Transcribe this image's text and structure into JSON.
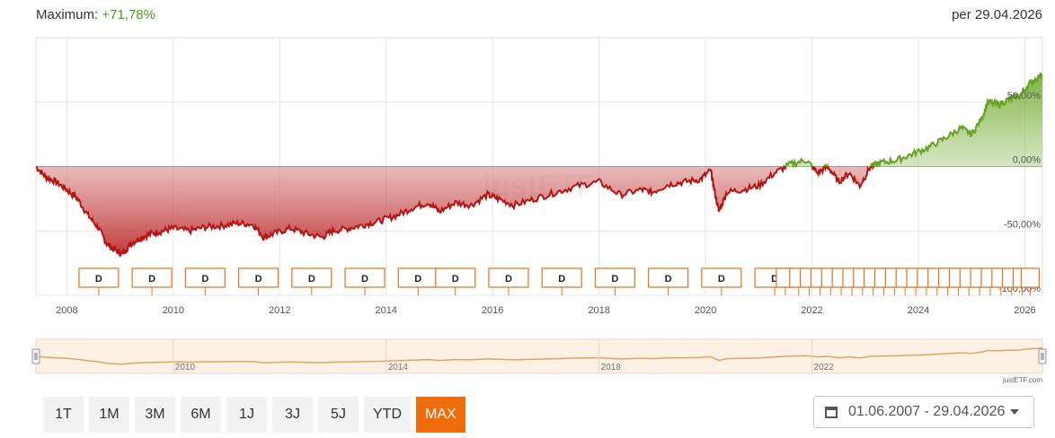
{
  "header": {
    "max_label": "Maximum:",
    "max_value": "+71,78%",
    "as_of": "per 29.04.2026"
  },
  "chart_data": {
    "type": "area",
    "x_ticks": [
      "2008",
      "2010",
      "2012",
      "2014",
      "2016",
      "2018",
      "2020",
      "2022",
      "2024",
      "2026"
    ],
    "y_ticks": [
      "50,00%",
      "0,00%",
      "-50,00%",
      "-100,00%"
    ],
    "y_tick_values": [
      50,
      0,
      -50,
      -100
    ],
    "ylim": [
      -100,
      100
    ],
    "xlim": [
      2007.42,
      2026.33
    ],
    "grid": true,
    "series": [
      {
        "x": [
          2007.42,
          2007.6,
          2007.8,
          2008.0,
          2008.2,
          2008.4,
          2008.6,
          2008.75,
          2008.9,
          2009.05,
          2009.2,
          2009.4,
          2009.6,
          2009.8,
          2010.0,
          2010.3,
          2010.6,
          2010.9,
          2011.2,
          2011.5,
          2011.7,
          2011.9,
          2012.2,
          2012.5,
          2012.8,
          2013.0,
          2013.3,
          2013.6,
          2013.9,
          2014.2,
          2014.5,
          2014.8,
          2015.0,
          2015.3,
          2015.6,
          2015.9,
          2016.1,
          2016.4,
          2016.8,
          2017.2,
          2017.6,
          2018.0,
          2018.4,
          2018.8,
          2019.0,
          2019.3,
          2019.6,
          2019.9,
          2020.1,
          2020.15,
          2020.25,
          2020.4,
          2020.7,
          2021.0,
          2021.3,
          2021.6,
          2021.9,
          2022.1,
          2022.3,
          2022.5,
          2022.7,
          2022.9,
          2023.1,
          2023.3,
          2023.6,
          2023.9,
          2024.2,
          2024.5,
          2024.8,
          2025.0,
          2025.2,
          2025.3,
          2025.5,
          2025.7,
          2025.9,
          2026.1,
          2026.33
        ],
        "y": [
          0,
          -8,
          -12,
          -18,
          -25,
          -38,
          -48,
          -60,
          -65,
          -68,
          -60,
          -55,
          -52,
          -50,
          -48,
          -50,
          -47,
          -46,
          -44,
          -45,
          -55,
          -52,
          -48,
          -52,
          -55,
          -50,
          -48,
          -45,
          -42,
          -38,
          -32,
          -28,
          -35,
          -28,
          -30,
          -22,
          -25,
          -30,
          -25,
          -20,
          -15,
          -12,
          -22,
          -18,
          -20,
          -14,
          -12,
          -10,
          -3,
          -15,
          -35,
          -20,
          -18,
          -15,
          -5,
          2,
          5,
          -5,
          0,
          -12,
          -5,
          -15,
          0,
          3,
          5,
          10,
          15,
          22,
          30,
          25,
          38,
          50,
          48,
          52,
          55,
          65,
          71.78
        ]
      }
    ],
    "dividend_markers_label": "D",
    "dividend_markers_x": [
      2008.6,
      2009.6,
      2010.6,
      2011.6,
      2012.6,
      2013.6,
      2014.6,
      2015.3,
      2016.3,
      2017.3,
      2018.3,
      2019.3,
      2020.3,
      2021.3,
      2021.5,
      2021.75,
      2021.95,
      2022.15,
      2022.35,
      2022.55,
      2022.75,
      2022.95,
      2023.15,
      2023.35,
      2023.55,
      2023.75,
      2023.95,
      2024.15,
      2024.35,
      2024.55,
      2024.75,
      2024.95,
      2025.15,
      2025.35,
      2025.55,
      2025.75,
      2025.95,
      2026.1
    ],
    "colors": {
      "negative": "#b51414",
      "positive": "#66a31f",
      "marker_border": "#e0721c",
      "navigator_line": "#e2a463"
    },
    "watermark": "justETF"
  },
  "navigator": {
    "x_ticks": [
      "2010",
      "2014",
      "2018",
      "2022"
    ],
    "credit": "justETF.com"
  },
  "range_buttons": [
    "1T",
    "1M",
    "3M",
    "6M",
    "1J",
    "3J",
    "5J",
    "YTD",
    "MAX"
  ],
  "active_range": "MAX",
  "date_range": "01.06.2007 - 29.04.2026"
}
